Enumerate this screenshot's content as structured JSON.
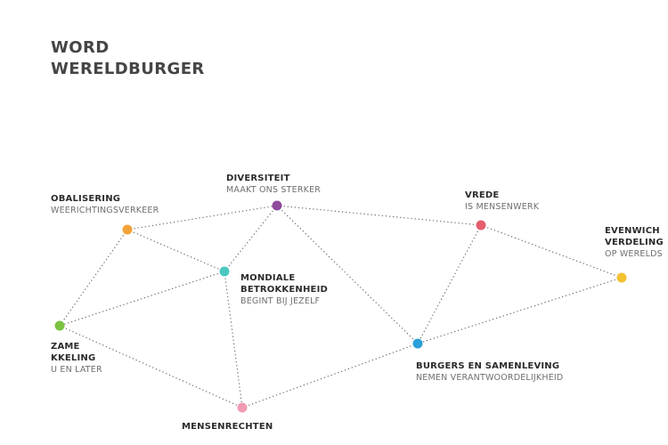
{
  "title": {
    "line1": "WORD",
    "line2": "WERELDBURGER"
  },
  "nodes": [
    {
      "id": "globalisering",
      "color": "#f2a33a",
      "label": {
        "title_lines": [
          "OBALISERING"
        ],
        "subtitle_lines": [
          "WEERICHTINGSVERKEER"
        ]
      }
    },
    {
      "id": "diversiteit",
      "color": "#8e4a9c",
      "label": {
        "title_lines": [
          "DIVERSITEIT"
        ],
        "subtitle_lines": [
          "MAAKT ONS STERKER"
        ]
      }
    },
    {
      "id": "vrede",
      "color": "#e55d6e",
      "label": {
        "title_lines": [
          "VREDE"
        ],
        "subtitle_lines": [
          "IS MENSENWERK"
        ]
      }
    },
    {
      "id": "evenwicht",
      "color": "#f2c233",
      "label": {
        "title_lines": [
          "EVENWICH",
          "VERDELING"
        ],
        "subtitle_lines": [
          "OP WERELDS"
        ]
      }
    },
    {
      "id": "mondiale",
      "color": "#4cc7c0",
      "label": {
        "title_lines": [
          "MONDIALE",
          "BETROKKENHEID"
        ],
        "subtitle_lines": [
          "BEGINT BIJ JEZELF"
        ]
      }
    },
    {
      "id": "duurzame",
      "color": "#7cc342",
      "label": {
        "title_lines": [
          "ZAME",
          "KKELING"
        ],
        "subtitle_lines": [
          "U EN LATER"
        ]
      }
    },
    {
      "id": "burgers",
      "color": "#2a9fd8",
      "label": {
        "title_lines": [
          "BURGERS EN SAMENLEVING"
        ],
        "subtitle_lines": [
          "NEMEN VERANTWOORDELIJKHEID"
        ]
      }
    },
    {
      "id": "mensenrechten",
      "color": "#f19bb1",
      "label": {
        "title_lines": [
          "MENSENRECHTEN"
        ],
        "subtitle_lines": []
      }
    }
  ],
  "edges": [
    [
      "globalisering",
      "diversiteit"
    ],
    [
      "globalisering",
      "mondiale"
    ],
    [
      "globalisering",
      "duurzame"
    ],
    [
      "diversiteit",
      "vrede"
    ],
    [
      "diversiteit",
      "mondiale"
    ],
    [
      "diversiteit",
      "burgers"
    ],
    [
      "vrede",
      "evenwicht"
    ],
    [
      "vrede",
      "burgers"
    ],
    [
      "evenwicht",
      "burgers"
    ],
    [
      "mondiale",
      "duurzame"
    ],
    [
      "mondiale",
      "mensenrechten"
    ],
    [
      "duurzame",
      "mensenrechten"
    ],
    [
      "mensenrechten",
      "burgers"
    ]
  ]
}
